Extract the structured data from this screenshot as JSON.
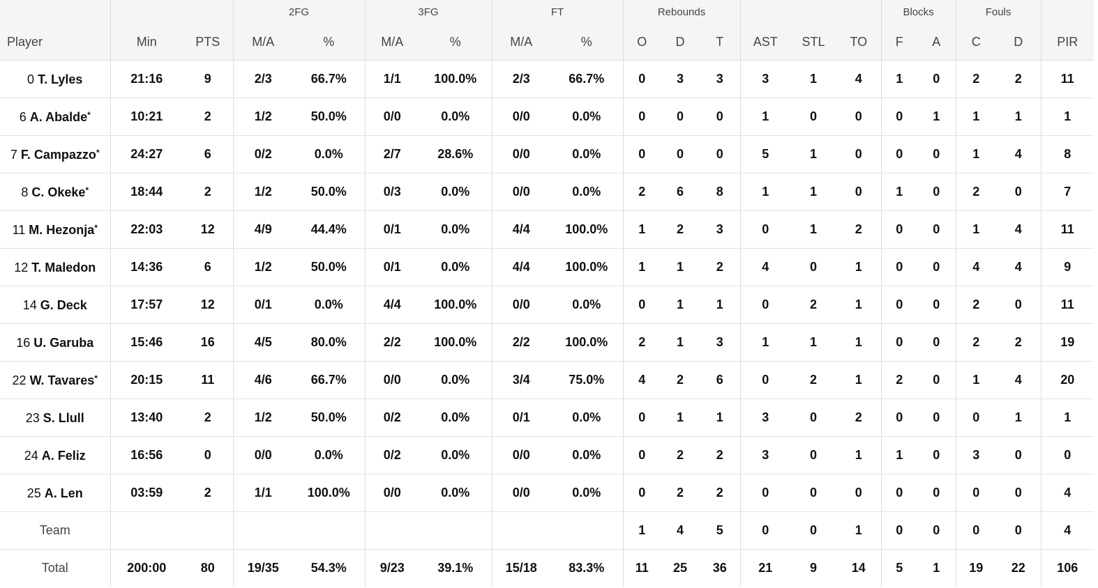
{
  "groups": {
    "fg2": "2FG",
    "fg3": "3FG",
    "ft": "FT",
    "rebounds": "Rebounds",
    "blocks": "Blocks",
    "fouls": "Fouls"
  },
  "columns": {
    "player": "Player",
    "min": "Min",
    "pts": "PTS",
    "fg2_ma": "M/A",
    "fg2_pct": "%",
    "fg3_ma": "M/A",
    "fg3_pct": "%",
    "ft_ma": "M/A",
    "ft_pct": "%",
    "reb_o": "O",
    "reb_d": "D",
    "reb_t": "T",
    "ast": "AST",
    "stl": "STL",
    "to": "TO",
    "blk_f": "F",
    "blk_a": "A",
    "foul_c": "C",
    "foul_d": "D",
    "pir": "PIR"
  },
  "rows": [
    {
      "num": "0",
      "name": "T. Lyles",
      "star": "",
      "min": "21:16",
      "pts": "9",
      "fg2_ma": "2/3",
      "fg2_pct": "66.7%",
      "fg3_ma": "1/1",
      "fg3_pct": "100.0%",
      "ft_ma": "2/3",
      "ft_pct": "66.7%",
      "reb_o": "0",
      "reb_d": "3",
      "reb_t": "3",
      "ast": "3",
      "stl": "1",
      "to": "4",
      "blk_f": "1",
      "blk_a": "0",
      "foul_c": "2",
      "foul_d": "2",
      "pir": "11"
    },
    {
      "num": "6",
      "name": "A. Abalde",
      "star": "*",
      "min": "10:21",
      "pts": "2",
      "fg2_ma": "1/2",
      "fg2_pct": "50.0%",
      "fg3_ma": "0/0",
      "fg3_pct": "0.0%",
      "ft_ma": "0/0",
      "ft_pct": "0.0%",
      "reb_o": "0",
      "reb_d": "0",
      "reb_t": "0",
      "ast": "1",
      "stl": "0",
      "to": "0",
      "blk_f": "0",
      "blk_a": "1",
      "foul_c": "1",
      "foul_d": "1",
      "pir": "1"
    },
    {
      "num": "7",
      "name": "F. Campazzo",
      "star": "*",
      "min": "24:27",
      "pts": "6",
      "fg2_ma": "0/2",
      "fg2_pct": "0.0%",
      "fg3_ma": "2/7",
      "fg3_pct": "28.6%",
      "ft_ma": "0/0",
      "ft_pct": "0.0%",
      "reb_o": "0",
      "reb_d": "0",
      "reb_t": "0",
      "ast": "5",
      "stl": "1",
      "to": "0",
      "blk_f": "0",
      "blk_a": "0",
      "foul_c": "1",
      "foul_d": "4",
      "pir": "8"
    },
    {
      "num": "8",
      "name": "C. Okeke",
      "star": "*",
      "min": "18:44",
      "pts": "2",
      "fg2_ma": "1/2",
      "fg2_pct": "50.0%",
      "fg3_ma": "0/3",
      "fg3_pct": "0.0%",
      "ft_ma": "0/0",
      "ft_pct": "0.0%",
      "reb_o": "2",
      "reb_d": "6",
      "reb_t": "8",
      "ast": "1",
      "stl": "1",
      "to": "0",
      "blk_f": "1",
      "blk_a": "0",
      "foul_c": "2",
      "foul_d": "0",
      "pir": "7"
    },
    {
      "num": "11",
      "name": "M. Hezonja",
      "star": "*",
      "min": "22:03",
      "pts": "12",
      "fg2_ma": "4/9",
      "fg2_pct": "44.4%",
      "fg3_ma": "0/1",
      "fg3_pct": "0.0%",
      "ft_ma": "4/4",
      "ft_pct": "100.0%",
      "reb_o": "1",
      "reb_d": "2",
      "reb_t": "3",
      "ast": "0",
      "stl": "1",
      "to": "2",
      "blk_f": "0",
      "blk_a": "0",
      "foul_c": "1",
      "foul_d": "4",
      "pir": "11"
    },
    {
      "num": "12",
      "name": "T. Maledon",
      "star": "",
      "min": "14:36",
      "pts": "6",
      "fg2_ma": "1/2",
      "fg2_pct": "50.0%",
      "fg3_ma": "0/1",
      "fg3_pct": "0.0%",
      "ft_ma": "4/4",
      "ft_pct": "100.0%",
      "reb_o": "1",
      "reb_d": "1",
      "reb_t": "2",
      "ast": "4",
      "stl": "0",
      "to": "1",
      "blk_f": "0",
      "blk_a": "0",
      "foul_c": "4",
      "foul_d": "4",
      "pir": "9"
    },
    {
      "num": "14",
      "name": "G. Deck",
      "star": "",
      "min": "17:57",
      "pts": "12",
      "fg2_ma": "0/1",
      "fg2_pct": "0.0%",
      "fg3_ma": "4/4",
      "fg3_pct": "100.0%",
      "ft_ma": "0/0",
      "ft_pct": "0.0%",
      "reb_o": "0",
      "reb_d": "1",
      "reb_t": "1",
      "ast": "0",
      "stl": "2",
      "to": "1",
      "blk_f": "0",
      "blk_a": "0",
      "foul_c": "2",
      "foul_d": "0",
      "pir": "11"
    },
    {
      "num": "16",
      "name": "U. Garuba",
      "star": "",
      "min": "15:46",
      "pts": "16",
      "fg2_ma": "4/5",
      "fg2_pct": "80.0%",
      "fg3_ma": "2/2",
      "fg3_pct": "100.0%",
      "ft_ma": "2/2",
      "ft_pct": "100.0%",
      "reb_o": "2",
      "reb_d": "1",
      "reb_t": "3",
      "ast": "1",
      "stl": "1",
      "to": "1",
      "blk_f": "0",
      "blk_a": "0",
      "foul_c": "2",
      "foul_d": "2",
      "pir": "19"
    },
    {
      "num": "22",
      "name": "W. Tavares",
      "star": "*",
      "min": "20:15",
      "pts": "11",
      "fg2_ma": "4/6",
      "fg2_pct": "66.7%",
      "fg3_ma": "0/0",
      "fg3_pct": "0.0%",
      "ft_ma": "3/4",
      "ft_pct": "75.0%",
      "reb_o": "4",
      "reb_d": "2",
      "reb_t": "6",
      "ast": "0",
      "stl": "2",
      "to": "1",
      "blk_f": "2",
      "blk_a": "0",
      "foul_c": "1",
      "foul_d": "4",
      "pir": "20"
    },
    {
      "num": "23",
      "name": "S. Llull",
      "star": "",
      "min": "13:40",
      "pts": "2",
      "fg2_ma": "1/2",
      "fg2_pct": "50.0%",
      "fg3_ma": "0/2",
      "fg3_pct": "0.0%",
      "ft_ma": "0/1",
      "ft_pct": "0.0%",
      "reb_o": "0",
      "reb_d": "1",
      "reb_t": "1",
      "ast": "3",
      "stl": "0",
      "to": "2",
      "blk_f": "0",
      "blk_a": "0",
      "foul_c": "0",
      "foul_d": "1",
      "pir": "1"
    },
    {
      "num": "24",
      "name": "A. Feliz",
      "star": "",
      "min": "16:56",
      "pts": "0",
      "fg2_ma": "0/0",
      "fg2_pct": "0.0%",
      "fg3_ma": "0/2",
      "fg3_pct": "0.0%",
      "ft_ma": "0/0",
      "ft_pct": "0.0%",
      "reb_o": "0",
      "reb_d": "2",
      "reb_t": "2",
      "ast": "3",
      "stl": "0",
      "to": "1",
      "blk_f": "1",
      "blk_a": "0",
      "foul_c": "3",
      "foul_d": "0",
      "pir": "0"
    },
    {
      "num": "25",
      "name": "A. Len",
      "star": "",
      "min": "03:59",
      "pts": "2",
      "fg2_ma": "1/1",
      "fg2_pct": "100.0%",
      "fg3_ma": "0/0",
      "fg3_pct": "0.0%",
      "ft_ma": "0/0",
      "ft_pct": "0.0%",
      "reb_o": "0",
      "reb_d": "2",
      "reb_t": "2",
      "ast": "0",
      "stl": "0",
      "to": "0",
      "blk_f": "0",
      "blk_a": "0",
      "foul_c": "0",
      "foul_d": "0",
      "pir": "4"
    }
  ],
  "team": {
    "label": "Team",
    "min": "",
    "pts": "",
    "fg2_ma": "",
    "fg2_pct": "",
    "fg3_ma": "",
    "fg3_pct": "",
    "ft_ma": "",
    "ft_pct": "",
    "reb_o": "1",
    "reb_d": "4",
    "reb_t": "5",
    "ast": "0",
    "stl": "0",
    "to": "1",
    "blk_f": "0",
    "blk_a": "0",
    "foul_c": "0",
    "foul_d": "0",
    "pir": "4"
  },
  "total": {
    "label": "Total",
    "min": "200:00",
    "pts": "80",
    "fg2_ma": "19/35",
    "fg2_pct": "54.3%",
    "fg3_ma": "9/23",
    "fg3_pct": "39.1%",
    "ft_ma": "15/18",
    "ft_pct": "83.3%",
    "reb_o": "11",
    "reb_d": "25",
    "reb_t": "36",
    "ast": "21",
    "stl": "9",
    "to": "14",
    "blk_f": "5",
    "blk_a": "1",
    "foul_c": "19",
    "foul_d": "22",
    "pir": "106"
  }
}
